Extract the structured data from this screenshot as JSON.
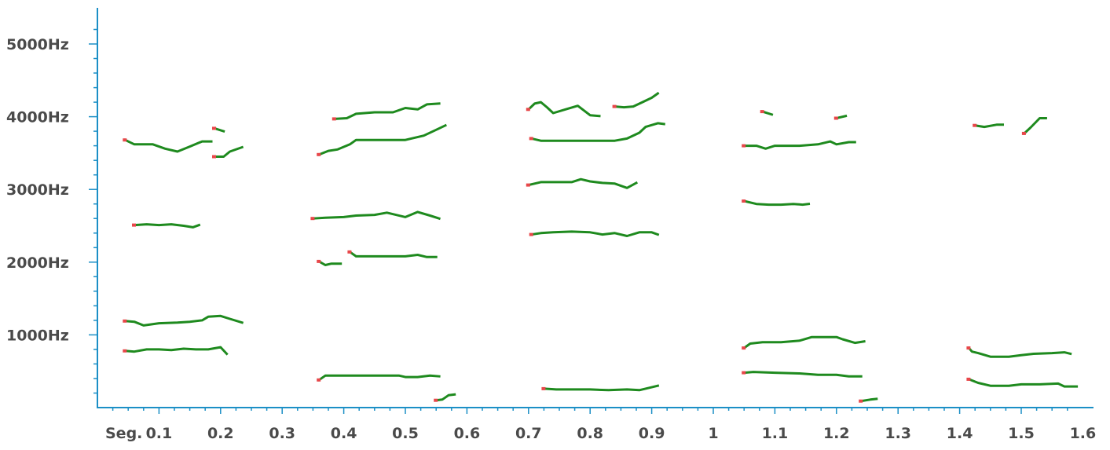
{
  "colors": {
    "axis": "#1b8fc6",
    "track": "#1e8a1e",
    "onset": "#e8474a",
    "label": "#4a4a4a"
  },
  "chart_data": {
    "type": "scatter",
    "title": "",
    "xlabel": "Seg.",
    "ylabel": "",
    "x_unit_label": "Seg.",
    "xlim": [
      0,
      1.62
    ],
    "ylim": [
      0,
      5300
    ],
    "x_ticks": [
      "0.1",
      "0.2",
      "0.3",
      "0.4",
      "0.5",
      "0.6",
      "0.7",
      "0.8",
      "0.9",
      "1",
      "1.1",
      "1.2",
      "1.3",
      "1.4",
      "1.5",
      "1.6"
    ],
    "y_ticks": [
      "1000Hz",
      "2000Hz",
      "3000Hz",
      "4000Hz",
      "5000Hz"
    ],
    "grid": false,
    "legend": "none",
    "series": [
      {
        "points": [
          [
            0.045,
            3680
          ],
          [
            0.06,
            3620
          ],
          [
            0.09,
            3620
          ],
          [
            0.11,
            3560
          ],
          [
            0.13,
            3520
          ],
          [
            0.15,
            3590
          ],
          [
            0.17,
            3660
          ],
          [
            0.185,
            3660
          ]
        ]
      },
      {
        "points": [
          [
            0.19,
            3840
          ],
          [
            0.205,
            3800
          ]
        ]
      },
      {
        "points": [
          [
            0.19,
            3450
          ],
          [
            0.205,
            3450
          ],
          [
            0.215,
            3520
          ],
          [
            0.235,
            3580
          ]
        ]
      },
      {
        "points": [
          [
            0.06,
            2510
          ],
          [
            0.08,
            2520
          ],
          [
            0.1,
            2510
          ],
          [
            0.12,
            2520
          ],
          [
            0.14,
            2500
          ],
          [
            0.155,
            2480
          ],
          [
            0.165,
            2510
          ]
        ]
      },
      {
        "points": [
          [
            0.045,
            1190
          ],
          [
            0.06,
            1180
          ],
          [
            0.075,
            1130
          ],
          [
            0.1,
            1160
          ],
          [
            0.13,
            1170
          ],
          [
            0.15,
            1180
          ],
          [
            0.17,
            1200
          ],
          [
            0.18,
            1250
          ],
          [
            0.2,
            1260
          ],
          [
            0.215,
            1220
          ],
          [
            0.235,
            1170
          ]
        ]
      },
      {
        "points": [
          [
            0.045,
            780
          ],
          [
            0.06,
            770
          ],
          [
            0.08,
            800
          ],
          [
            0.1,
            800
          ],
          [
            0.12,
            790
          ],
          [
            0.14,
            810
          ],
          [
            0.16,
            800
          ],
          [
            0.18,
            800
          ],
          [
            0.2,
            830
          ],
          [
            0.21,
            740
          ]
        ]
      },
      {
        "points": [
          [
            0.36,
            3480
          ],
          [
            0.375,
            3530
          ],
          [
            0.39,
            3550
          ],
          [
            0.41,
            3620
          ],
          [
            0.42,
            3680
          ],
          [
            0.45,
            3680
          ],
          [
            0.5,
            3680
          ],
          [
            0.53,
            3740
          ],
          [
            0.55,
            3820
          ],
          [
            0.565,
            3880
          ]
        ]
      },
      {
        "points": [
          [
            0.385,
            3970
          ],
          [
            0.405,
            3980
          ],
          [
            0.42,
            4040
          ],
          [
            0.45,
            4060
          ],
          [
            0.48,
            4060
          ],
          [
            0.5,
            4120
          ],
          [
            0.52,
            4100
          ],
          [
            0.535,
            4170
          ],
          [
            0.555,
            4180
          ]
        ]
      },
      {
        "points": [
          [
            0.35,
            2600
          ],
          [
            0.37,
            2610
          ],
          [
            0.4,
            2620
          ],
          [
            0.42,
            2640
          ],
          [
            0.45,
            2650
          ],
          [
            0.47,
            2680
          ],
          [
            0.5,
            2620
          ],
          [
            0.52,
            2690
          ],
          [
            0.54,
            2640
          ],
          [
            0.555,
            2600
          ]
        ]
      },
      {
        "points": [
          [
            0.36,
            2010
          ],
          [
            0.37,
            1960
          ],
          [
            0.38,
            1980
          ],
          [
            0.395,
            1980
          ]
        ]
      },
      {
        "points": [
          [
            0.41,
            2140
          ],
          [
            0.42,
            2080
          ],
          [
            0.45,
            2080
          ],
          [
            0.48,
            2080
          ],
          [
            0.5,
            2080
          ],
          [
            0.52,
            2100
          ],
          [
            0.535,
            2070
          ],
          [
            0.55,
            2070
          ]
        ]
      },
      {
        "points": [
          [
            0.36,
            380
          ],
          [
            0.37,
            440
          ],
          [
            0.39,
            440
          ],
          [
            0.42,
            440
          ],
          [
            0.46,
            440
          ],
          [
            0.49,
            440
          ],
          [
            0.5,
            420
          ],
          [
            0.52,
            420
          ],
          [
            0.54,
            440
          ],
          [
            0.555,
            430
          ]
        ]
      },
      {
        "points": [
          [
            0.55,
            100
          ],
          [
            0.56,
            110
          ],
          [
            0.57,
            170
          ],
          [
            0.58,
            180
          ]
        ]
      },
      {
        "points": [
          [
            0.7,
            4100
          ],
          [
            0.71,
            4180
          ],
          [
            0.72,
            4200
          ],
          [
            0.73,
            4130
          ],
          [
            0.74,
            4050
          ],
          [
            0.76,
            4100
          ],
          [
            0.78,
            4150
          ],
          [
            0.8,
            4020
          ],
          [
            0.815,
            4010
          ]
        ]
      },
      {
        "points": [
          [
            0.84,
            4140
          ],
          [
            0.855,
            4130
          ],
          [
            0.87,
            4140
          ],
          [
            0.885,
            4200
          ],
          [
            0.9,
            4260
          ],
          [
            0.91,
            4320
          ]
        ]
      },
      {
        "points": [
          [
            0.705,
            3700
          ],
          [
            0.72,
            3670
          ],
          [
            0.75,
            3670
          ],
          [
            0.78,
            3670
          ],
          [
            0.8,
            3670
          ],
          [
            0.84,
            3670
          ],
          [
            0.86,
            3700
          ],
          [
            0.88,
            3780
          ],
          [
            0.89,
            3860
          ],
          [
            0.91,
            3910
          ],
          [
            0.92,
            3900
          ]
        ]
      },
      {
        "points": [
          [
            0.7,
            3060
          ],
          [
            0.72,
            3100
          ],
          [
            0.75,
            3100
          ],
          [
            0.77,
            3100
          ],
          [
            0.785,
            3140
          ],
          [
            0.8,
            3110
          ],
          [
            0.82,
            3090
          ],
          [
            0.84,
            3080
          ],
          [
            0.86,
            3020
          ],
          [
            0.875,
            3090
          ]
        ]
      },
      {
        "points": [
          [
            0.705,
            2380
          ],
          [
            0.72,
            2400
          ],
          [
            0.74,
            2410
          ],
          [
            0.77,
            2420
          ],
          [
            0.8,
            2410
          ],
          [
            0.82,
            2380
          ],
          [
            0.84,
            2400
          ],
          [
            0.86,
            2360
          ],
          [
            0.88,
            2410
          ],
          [
            0.9,
            2410
          ],
          [
            0.91,
            2380
          ]
        ]
      },
      {
        "points": [
          [
            0.725,
            260
          ],
          [
            0.745,
            250
          ],
          [
            0.77,
            250
          ],
          [
            0.8,
            250
          ],
          [
            0.83,
            240
          ],
          [
            0.86,
            250
          ],
          [
            0.88,
            240
          ],
          [
            0.9,
            280
          ],
          [
            0.91,
            300
          ]
        ]
      },
      {
        "points": [
          [
            1.08,
            4070
          ],
          [
            1.095,
            4030
          ]
        ]
      },
      {
        "points": [
          [
            1.2,
            3980
          ],
          [
            1.215,
            4010
          ]
        ]
      },
      {
        "points": [
          [
            1.05,
            3600
          ],
          [
            1.07,
            3600
          ],
          [
            1.085,
            3560
          ],
          [
            1.1,
            3600
          ],
          [
            1.14,
            3600
          ],
          [
            1.17,
            3620
          ],
          [
            1.19,
            3660
          ],
          [
            1.2,
            3620
          ],
          [
            1.22,
            3650
          ],
          [
            1.23,
            3650
          ]
        ]
      },
      {
        "points": [
          [
            1.05,
            2840
          ],
          [
            1.07,
            2800
          ],
          [
            1.09,
            2790
          ],
          [
            1.11,
            2790
          ],
          [
            1.13,
            2800
          ],
          [
            1.145,
            2790
          ],
          [
            1.155,
            2800
          ]
        ]
      },
      {
        "points": [
          [
            1.05,
            820
          ],
          [
            1.06,
            880
          ],
          [
            1.08,
            900
          ],
          [
            1.11,
            900
          ],
          [
            1.14,
            920
          ],
          [
            1.16,
            970
          ],
          [
            1.2,
            970
          ],
          [
            1.21,
            940
          ],
          [
            1.23,
            890
          ],
          [
            1.245,
            910
          ]
        ]
      },
      {
        "points": [
          [
            1.05,
            480
          ],
          [
            1.065,
            490
          ],
          [
            1.1,
            480
          ],
          [
            1.14,
            470
          ],
          [
            1.17,
            450
          ],
          [
            1.2,
            450
          ],
          [
            1.22,
            430
          ],
          [
            1.24,
            430
          ]
        ]
      },
      {
        "points": [
          [
            1.24,
            90
          ],
          [
            1.255,
            110
          ],
          [
            1.265,
            120
          ]
        ]
      },
      {
        "points": [
          [
            1.425,
            3880
          ],
          [
            1.44,
            3860
          ],
          [
            1.46,
            3890
          ],
          [
            1.47,
            3890
          ]
        ]
      },
      {
        "points": [
          [
            1.505,
            3770
          ],
          [
            1.515,
            3850
          ],
          [
            1.53,
            3980
          ],
          [
            1.54,
            3980
          ]
        ]
      },
      {
        "points": [
          [
            1.415,
            820
          ],
          [
            1.42,
            770
          ],
          [
            1.43,
            750
          ],
          [
            1.45,
            700
          ],
          [
            1.48,
            700
          ],
          [
            1.5,
            720
          ],
          [
            1.52,
            740
          ],
          [
            1.55,
            750
          ],
          [
            1.57,
            760
          ],
          [
            1.58,
            740
          ]
        ]
      },
      {
        "points": [
          [
            1.415,
            390
          ],
          [
            1.43,
            340
          ],
          [
            1.45,
            300
          ],
          [
            1.48,
            300
          ],
          [
            1.5,
            320
          ],
          [
            1.53,
            320
          ],
          [
            1.56,
            330
          ],
          [
            1.57,
            290
          ],
          [
            1.59,
            290
          ]
        ]
      }
    ]
  }
}
